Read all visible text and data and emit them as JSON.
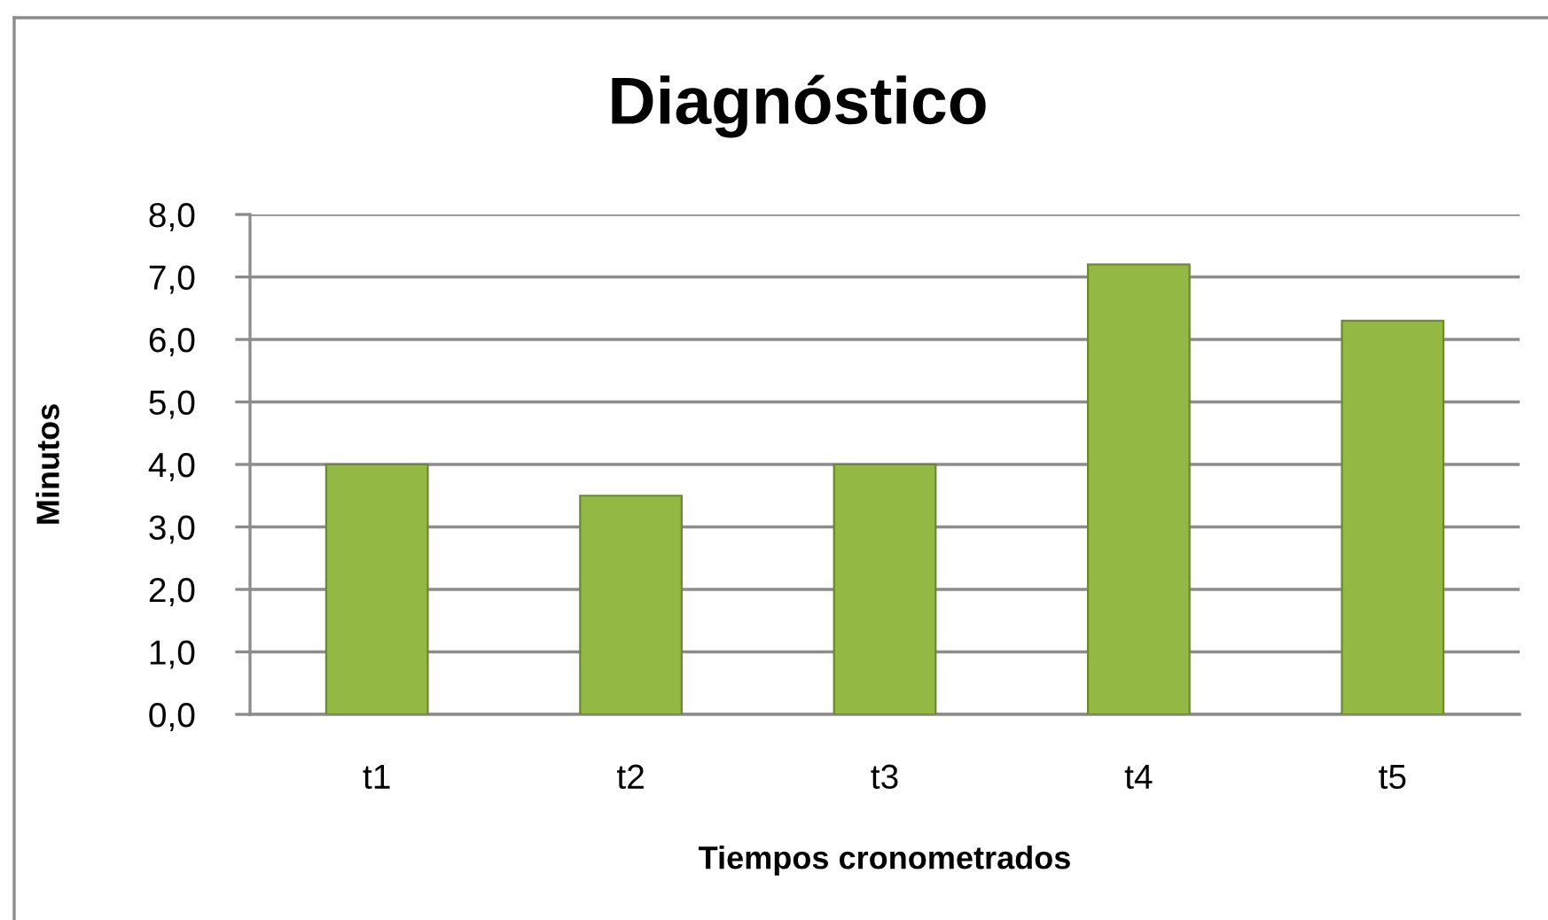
{
  "chart_data": {
    "type": "bar",
    "title": "Diagnóstico",
    "xlabel": "Tiempos cronometrados",
    "ylabel": "Minutos",
    "categories": [
      "t1",
      "t2",
      "t3",
      "t4",
      "t5"
    ],
    "values": [
      4.0,
      3.5,
      4.0,
      7.2,
      6.3
    ],
    "color": "#93b944",
    "ylim": [
      0,
      8
    ],
    "yticks": [
      {
        "value": 0,
        "label": "0,0"
      },
      {
        "value": 1,
        "label": "1,0"
      },
      {
        "value": 2,
        "label": "2,0"
      },
      {
        "value": 3,
        "label": "3,0"
      },
      {
        "value": 4,
        "label": "4,0"
      },
      {
        "value": 5,
        "label": "5,0"
      },
      {
        "value": 6,
        "label": "6,0"
      },
      {
        "value": 7,
        "label": "7,0"
      },
      {
        "value": 8,
        "label": "8,0"
      }
    ],
    "grid": "y"
  }
}
